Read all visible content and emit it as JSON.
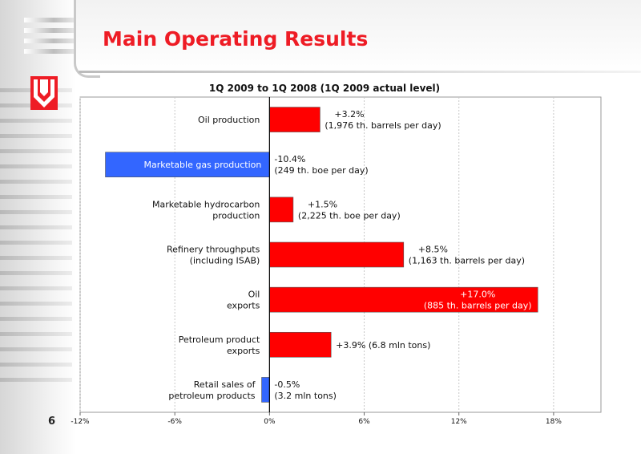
{
  "page": {
    "title": "Main Operating Results",
    "page_number": "6"
  },
  "logo": {
    "icon": "lukoil-logo-icon",
    "color": "#ee1c25"
  },
  "colors": {
    "positive": "#ff0000",
    "negative": "#3366ff",
    "accent": "#ee1c25"
  },
  "chart_data": {
    "type": "bar",
    "orientation": "horizontal",
    "title": "1Q 2009 to 1Q 2008 (1Q 2009 actual level)",
    "xlim": [
      -12,
      21
    ],
    "x_ticks": [
      -12,
      -6,
      0,
      6,
      12,
      18
    ],
    "x_tick_labels": [
      "-12%",
      "-6%",
      "0%",
      "6%",
      "12%",
      "18%"
    ],
    "grid": true,
    "categories": [
      [
        "Oil production"
      ],
      [
        "Marketable gas production"
      ],
      [
        "Marketable hydrocarbon",
        "production"
      ],
      [
        "Refinery throughputs",
        "(including ISAB)"
      ],
      [
        "Oil",
        "exports"
      ],
      [
        "Petroleum product",
        "exports"
      ],
      [
        "Retail sales of",
        "petroleum products"
      ]
    ],
    "values": [
      3.2,
      -10.4,
      1.5,
      8.5,
      17.0,
      3.9,
      -0.5
    ],
    "data_labels": [
      [
        "+3.2%",
        "(1,976 th. barrels per day)"
      ],
      [
        "-10.4%",
        "(249 th. boe per day)"
      ],
      [
        "+1.5%",
        "(2,225 th. boe per day)"
      ],
      [
        "+8.5%",
        "(1,163 th. barrels per day)"
      ],
      [
        "+17.0%",
        "(885 th. barrels per day)"
      ],
      [
        "+3.9% (6.8 mln tons)"
      ],
      [
        "-0.5%",
        "(3.2 mln tons)"
      ]
    ]
  }
}
